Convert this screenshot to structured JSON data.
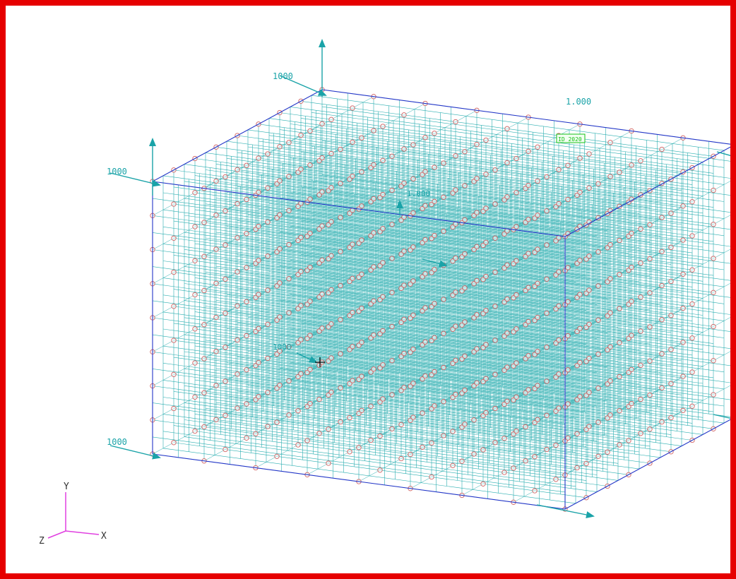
{
  "model": {
    "divisions": 16,
    "labels": {
      "y_top": "1000",
      "x_back": "1.000",
      "z_left_top": "1000",
      "z_left_bottom": "1000",
      "center_tag": "1.000",
      "center_tag_lower": "1000"
    },
    "node_label": "ID 2020"
  },
  "triad": {
    "x": "X",
    "y": "Y",
    "z": "Z"
  },
  "colors": {
    "frame": "#e60000",
    "grid": "#2aaeb0",
    "node": "#d06060",
    "edge": "#2436c8",
    "axis": "#1aa3a8",
    "triad": "#e040e0",
    "tag": "#16c016",
    "label": "#1aa3a8"
  }
}
